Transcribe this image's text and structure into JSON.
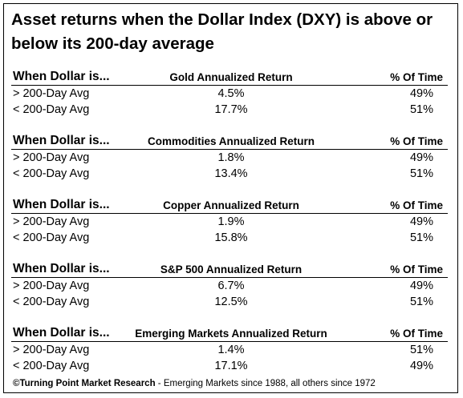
{
  "title": "Asset returns when the Dollar Index (DXY) is above or below its 200-day average",
  "col_label": "When Dollar is...",
  "time_label": "% Of Time",
  "tables": [
    {
      "header": "Gold Annualized Return",
      "rows": [
        {
          "cond": "> 200-Day Avg",
          "ret": "4.5%",
          "time": "49%"
        },
        {
          "cond": "< 200-Day Avg",
          "ret": "17.7%",
          "time": "51%"
        }
      ]
    },
    {
      "header": "Commodities Annualized Return",
      "rows": [
        {
          "cond": "> 200-Day Avg",
          "ret": "1.8%",
          "time": "49%"
        },
        {
          "cond": "< 200-Day Avg",
          "ret": "13.4%",
          "time": "51%"
        }
      ]
    },
    {
      "header": "Copper Annualized Return",
      "rows": [
        {
          "cond": "> 200-Day Avg",
          "ret": "1.9%",
          "time": "49%"
        },
        {
          "cond": "< 200-Day Avg",
          "ret": "15.8%",
          "time": "51%"
        }
      ]
    },
    {
      "header": "S&P 500 Annualized Return",
      "rows": [
        {
          "cond": "> 200-Day Avg",
          "ret": "6.7%",
          "time": "49%"
        },
        {
          "cond": "< 200-Day Avg",
          "ret": "12.5%",
          "time": "51%"
        }
      ]
    },
    {
      "header": "Emerging Markets Annualized Return",
      "rows": [
        {
          "cond": "> 200-Day Avg",
          "ret": "1.4%",
          "time": "51%"
        },
        {
          "cond": "< 200-Day Avg",
          "ret": "17.1%",
          "time": "49%"
        }
      ]
    }
  ],
  "footer": {
    "source": "©Turning Point Market Research",
    "note": " - Emerging Markets since 1988, all others since 1972"
  }
}
